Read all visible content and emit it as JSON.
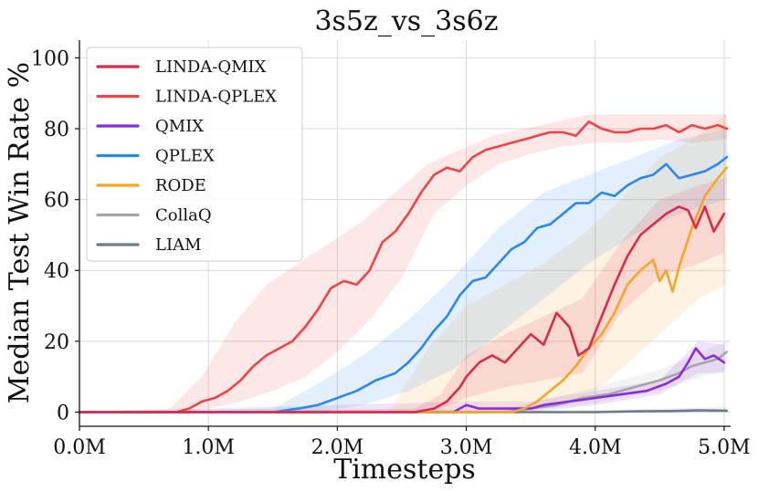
{
  "chart_data": {
    "type": "line",
    "title": "3s5z_vs_3s6z",
    "xlabel": "Timesteps",
    "ylabel": "Median Test Win Rate %",
    "xlim": [
      0,
      5.05
    ],
    "ylim": [
      -4,
      105
    ],
    "x_ticks": [
      0,
      1,
      2,
      3,
      4,
      5
    ],
    "x_tick_labels": [
      "0.0M",
      "1.0M",
      "2.0M",
      "3.0M",
      "4.0M",
      "5.0M"
    ],
    "y_ticks": [
      0,
      20,
      40,
      60,
      80,
      100
    ],
    "y_tick_labels": [
      "0",
      "20",
      "40",
      "60",
      "80",
      "100"
    ],
    "grid": true,
    "legend_position": "top-left",
    "series": [
      {
        "name": "LINDA-QMIX",
        "color": "#dc2a4e",
        "x": [
          0,
          2.6,
          2.75,
          2.85,
          2.95,
          3.0,
          3.1,
          3.2,
          3.3,
          3.4,
          3.5,
          3.6,
          3.7,
          3.8,
          3.87,
          3.95,
          4.05,
          4.15,
          4.25,
          4.35,
          4.45,
          4.55,
          4.65,
          4.72,
          4.78,
          4.85,
          4.92,
          5.0
        ],
        "y": [
          0,
          0,
          1,
          3,
          7,
          10,
          14,
          16,
          14,
          18,
          22,
          19,
          28,
          24,
          16,
          18,
          27,
          36,
          44,
          50,
          53,
          56,
          58,
          57,
          52,
          58,
          51,
          56
        ],
        "band": [
          [
            0,
            0
          ],
          [
            2.6,
            0
          ],
          [
            2.8,
            1
          ],
          [
            3.0,
            4
          ],
          [
            3.3,
            7
          ],
          [
            3.6,
            9
          ],
          [
            3.9,
            11
          ],
          [
            4.2,
            28
          ],
          [
            4.5,
            38
          ],
          [
            4.8,
            42
          ],
          [
            5.0,
            45
          ]
        ],
        "band_upper": [
          [
            0,
            0
          ],
          [
            2.6,
            1
          ],
          [
            2.8,
            5
          ],
          [
            3.0,
            16
          ],
          [
            3.3,
            22
          ],
          [
            3.6,
            27
          ],
          [
            3.9,
            32
          ],
          [
            4.2,
            48
          ],
          [
            4.5,
            60
          ],
          [
            4.8,
            64
          ],
          [
            5.0,
            66
          ]
        ]
      },
      {
        "name": "LINDA-QPLEX",
        "color": "#f04545",
        "x": [
          0,
          0.75,
          0.85,
          0.95,
          1.05,
          1.15,
          1.25,
          1.35,
          1.45,
          1.55,
          1.65,
          1.75,
          1.85,
          1.95,
          2.05,
          2.15,
          2.25,
          2.35,
          2.45,
          2.55,
          2.65,
          2.75,
          2.85,
          2.95,
          3.05,
          3.15,
          3.25,
          3.35,
          3.45,
          3.55,
          3.65,
          3.75,
          3.85,
          3.95,
          4.05,
          4.15,
          4.25,
          4.35,
          4.45,
          4.55,
          4.65,
          4.75,
          4.85,
          4.95,
          5.02
        ],
        "y": [
          0,
          0,
          1,
          3,
          4,
          6,
          9,
          13,
          16,
          18,
          20,
          24,
          29,
          35,
          37,
          36,
          40,
          48,
          51,
          56,
          62,
          67,
          69,
          68,
          72,
          74,
          75,
          76,
          77,
          78,
          79,
          79,
          78,
          82,
          80,
          79,
          79,
          80,
          80,
          81,
          79,
          81,
          80,
          81,
          80
        ],
        "band_lower": [
          [
            0,
            0
          ],
          [
            0.75,
            0
          ],
          [
            1.0,
            1
          ],
          [
            1.25,
            3
          ],
          [
            1.5,
            6
          ],
          [
            1.75,
            10
          ],
          [
            2.0,
            17
          ],
          [
            2.25,
            26
          ],
          [
            2.5,
            38
          ],
          [
            2.75,
            56
          ],
          [
            3.0,
            64
          ],
          [
            3.25,
            70
          ],
          [
            3.5,
            73
          ],
          [
            3.75,
            75
          ],
          [
            4.0,
            76
          ],
          [
            4.25,
            76
          ],
          [
            4.5,
            77
          ],
          [
            4.75,
            76
          ],
          [
            5.02,
            77
          ]
        ],
        "band_upper": [
          [
            0,
            0
          ],
          [
            0.7,
            1
          ],
          [
            0.95,
            10
          ],
          [
            1.2,
            25
          ],
          [
            1.45,
            36
          ],
          [
            1.7,
            42
          ],
          [
            1.95,
            48
          ],
          [
            2.2,
            54
          ],
          [
            2.45,
            62
          ],
          [
            2.7,
            70
          ],
          [
            2.95,
            74
          ],
          [
            3.2,
            78
          ],
          [
            3.45,
            80
          ],
          [
            3.7,
            82
          ],
          [
            3.95,
            84
          ],
          [
            4.2,
            84
          ],
          [
            4.45,
            84
          ],
          [
            4.7,
            84
          ],
          [
            5.02,
            84
          ]
        ]
      },
      {
        "name": "QMIX",
        "color": "#8a2be2",
        "x": [
          0,
          2.9,
          3.0,
          3.1,
          3.3,
          3.5,
          3.6,
          3.8,
          4.0,
          4.2,
          4.4,
          4.55,
          4.65,
          4.72,
          4.78,
          4.85,
          4.92,
          5.0
        ],
        "y": [
          0,
          0,
          2,
          1,
          1,
          1,
          2,
          3,
          4,
          5,
          6,
          8,
          10,
          14,
          18,
          15,
          16,
          14
        ],
        "band_lower": [
          [
            0,
            0
          ],
          [
            3.0,
            0
          ],
          [
            3.5,
            0
          ],
          [
            4.0,
            2
          ],
          [
            4.5,
            5
          ],
          [
            4.8,
            11
          ],
          [
            5.0,
            11
          ]
        ],
        "band_upper": [
          [
            0,
            0
          ],
          [
            3.0,
            3
          ],
          [
            3.5,
            3
          ],
          [
            4.0,
            6
          ],
          [
            4.5,
            9
          ],
          [
            4.8,
            20
          ],
          [
            5.0,
            19
          ]
        ]
      },
      {
        "name": "QPLEX",
        "color": "#2a87ef",
        "x": [
          0,
          1.5,
          1.7,
          1.85,
          2.0,
          2.15,
          2.3,
          2.45,
          2.55,
          2.65,
          2.75,
          2.85,
          2.95,
          3.05,
          3.15,
          3.25,
          3.35,
          3.45,
          3.55,
          3.65,
          3.75,
          3.85,
          3.95,
          4.05,
          4.15,
          4.25,
          4.35,
          4.45,
          4.55,
          4.65,
          4.75,
          4.85,
          4.95,
          5.02
        ],
        "y": [
          0,
          0,
          1,
          2,
          4,
          6,
          9,
          11,
          14,
          18,
          23,
          27,
          33,
          37,
          38,
          42,
          46,
          48,
          52,
          53,
          56,
          59,
          59,
          62,
          61,
          64,
          66,
          67,
          70,
          66,
          67,
          68,
          70,
          72
        ],
        "band_lower": [
          [
            0,
            0
          ],
          [
            1.5,
            0
          ],
          [
            1.85,
            0
          ],
          [
            2.2,
            2
          ],
          [
            2.55,
            6
          ],
          [
            2.9,
            12
          ],
          [
            3.25,
            22
          ],
          [
            3.6,
            32
          ],
          [
            3.95,
            42
          ],
          [
            4.3,
            50
          ],
          [
            4.65,
            56
          ],
          [
            5.02,
            60
          ]
        ],
        "band_upper": [
          [
            0,
            0
          ],
          [
            1.5,
            1
          ],
          [
            1.85,
            8
          ],
          [
            2.2,
            16
          ],
          [
            2.55,
            26
          ],
          [
            2.9,
            38
          ],
          [
            3.25,
            52
          ],
          [
            3.6,
            62
          ],
          [
            3.95,
            67
          ],
          [
            4.3,
            72
          ],
          [
            4.65,
            77
          ],
          [
            5.02,
            80
          ]
        ]
      },
      {
        "name": "RODE",
        "color": "#f5a623",
        "x": [
          0,
          3.35,
          3.45,
          3.55,
          3.65,
          3.75,
          3.85,
          3.95,
          4.05,
          4.15,
          4.25,
          4.35,
          4.45,
          4.5,
          4.55,
          4.6,
          4.65,
          4.75,
          4.85,
          4.95,
          5.02
        ],
        "y": [
          0,
          0,
          1,
          3,
          6,
          9,
          13,
          18,
          22,
          28,
          36,
          40,
          43,
          37,
          40,
          34,
          41,
          52,
          61,
          66,
          69
        ],
        "band_lower": [
          [
            0,
            0
          ],
          [
            3.3,
            0
          ],
          [
            3.6,
            1
          ],
          [
            3.9,
            3
          ],
          [
            4.2,
            12
          ],
          [
            4.5,
            22
          ],
          [
            4.8,
            32
          ],
          [
            5.02,
            36
          ]
        ],
        "band_upper": [
          [
            0,
            0
          ],
          [
            2.4,
            0
          ],
          [
            2.7,
            18
          ],
          [
            3.0,
            30
          ],
          [
            3.3,
            36
          ],
          [
            3.6,
            42
          ],
          [
            3.9,
            50
          ],
          [
            4.2,
            60
          ],
          [
            4.5,
            72
          ],
          [
            4.8,
            78
          ],
          [
            5.02,
            84
          ]
        ]
      },
      {
        "name": "CollaQ",
        "color": "#a5a5a5",
        "x": [
          0,
          3.3,
          3.5,
          3.7,
          3.9,
          4.1,
          4.3,
          4.5,
          4.65,
          4.75,
          4.85,
          4.95,
          5.02
        ],
        "y": [
          0,
          0,
          1,
          2,
          4,
          5,
          7,
          9,
          11,
          13,
          14,
          15,
          17
        ],
        "band_lower": [
          [
            0,
            0
          ],
          [
            3.3,
            0
          ],
          [
            3.9,
            2
          ],
          [
            4.5,
            6
          ],
          [
            5.02,
            12
          ]
        ],
        "band_upper": [
          [
            0,
            0
          ],
          [
            3.3,
            1
          ],
          [
            3.9,
            6
          ],
          [
            4.5,
            12
          ],
          [
            5.02,
            20
          ]
        ]
      },
      {
        "name": "LIAM",
        "color": "#6c7a89",
        "x": [
          0,
          4.0,
          4.3,
          4.6,
          4.8,
          5.02
        ],
        "y": [
          0,
          0,
          0.2,
          0.3,
          0.5,
          0.4
        ],
        "band_lower": [
          [
            0,
            0
          ],
          [
            5.02,
            0
          ]
        ],
        "band_upper": [
          [
            0,
            0
          ],
          [
            4.0,
            0.5
          ],
          [
            5.02,
            1.5
          ]
        ]
      }
    ]
  }
}
